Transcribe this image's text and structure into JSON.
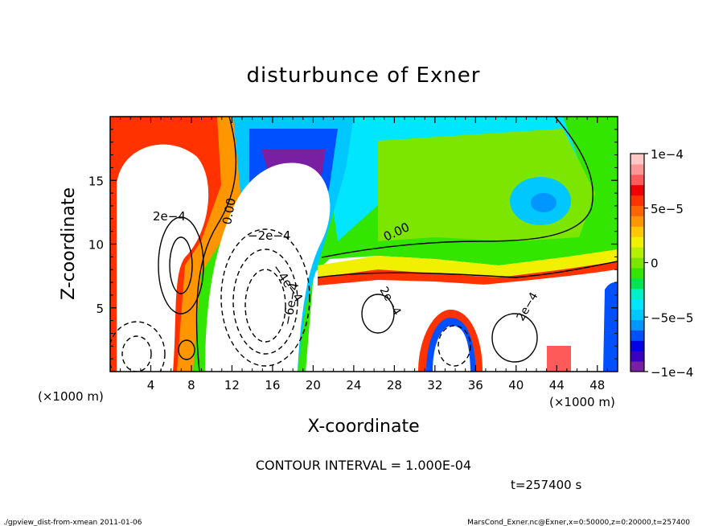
{
  "chart_data": {
    "type": "heatmap",
    "title": "disturbunce of Exner",
    "xlabel": "X-coordinate",
    "ylabel": "Z-coordinate",
    "x_unit_left": "(×1000 m)",
    "x_unit_right": "(×1000 m)",
    "xlim": [
      0,
      50
    ],
    "ylim": [
      0,
      20
    ],
    "x_ticks": [
      4,
      8,
      12,
      16,
      20,
      24,
      28,
      32,
      36,
      40,
      44,
      48
    ],
    "y_ticks": [
      5,
      10,
      15
    ],
    "colorbar": {
      "min": -0.0001,
      "max": 0.0001,
      "tick_values": [
        -0.0001,
        -5e-05,
        0,
        5e-05,
        0.0001
      ],
      "tick_labels": [
        "−1e−4",
        "−5e−5",
        "0",
        "5e−5",
        "1e−4"
      ],
      "colors": [
        "#7b1fa2",
        "#3a00c0",
        "#0000e6",
        "#0050ff",
        "#0096ff",
        "#00c8ff",
        "#00e6ff",
        "#00f0c8",
        "#00e650",
        "#32e600",
        "#7de600",
        "#b4f000",
        "#f0f000",
        "#ffc800",
        "#ff9600",
        "#ff6400",
        "#ff3200",
        "#f00000",
        "#ff5a5a",
        "#ff9696",
        "#ffc8c8"
      ]
    },
    "contour_labels": [
      "2e−4",
      "0.00",
      "−2e−4",
      "−4e−4",
      "−6e−4",
      "0.00",
      "2e−4",
      "2e−4"
    ],
    "contour_interval_text": "CONTOUR INTERVAL = 1.000E-04",
    "time_text": "t=257400 s",
    "footer_left": "./gpview_dist-from-xmean  2011-01-06",
    "footer_right": "MarsCond_Exner.nc@Exner,x=0:50000,z=0:20000,t=257400"
  }
}
